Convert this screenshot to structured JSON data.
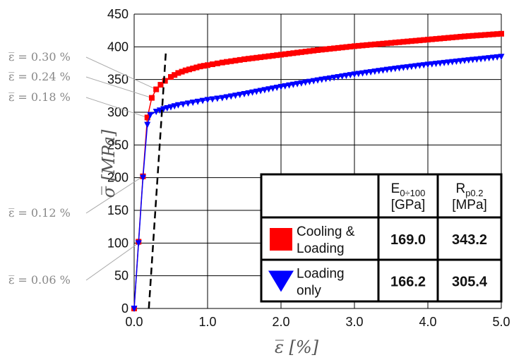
{
  "chart_data": {
    "type": "line",
    "xlabel": "ε̅ [%]",
    "ylabel": "σ̅ [MPa]",
    "xlim": [
      0,
      5
    ],
    "ylim": [
      0,
      450
    ],
    "x_ticks": [
      "0.0",
      "1.0",
      "2.0",
      "3.0",
      "4.0",
      "5.0"
    ],
    "y_ticks": [
      "0",
      "50",
      "100",
      "150",
      "200",
      "250",
      "300",
      "350",
      "400",
      "450"
    ],
    "grid": true,
    "series": [
      {
        "name": "Cooling & Loading",
        "color": "#ff0000",
        "marker": "square",
        "x": [
          0,
          0.06,
          0.12,
          0.18,
          0.24,
          0.3,
          0.36,
          0.42,
          0.5,
          0.6,
          0.7,
          0.8,
          0.9,
          1.0,
          1.2,
          1.5,
          2.0,
          2.5,
          3.0,
          3.5,
          4.0,
          4.5,
          5.0
        ],
        "y": [
          0,
          102,
          202,
          292,
          322,
          335,
          342,
          348,
          354,
          360,
          364,
          367,
          370,
          372,
          376,
          381,
          388,
          395,
          401,
          406,
          411,
          416,
          420
        ]
      },
      {
        "name": "Loading only",
        "color": "#0000ff",
        "marker": "triangle-down",
        "x": [
          0,
          0.06,
          0.12,
          0.18,
          0.22,
          0.3,
          0.4,
          0.5,
          0.6,
          0.8,
          1.0,
          1.2,
          1.5,
          2.0,
          2.5,
          3.0,
          3.5,
          4.0,
          4.5,
          5.0
        ],
        "y": [
          0,
          100,
          200,
          281,
          296,
          301,
          305,
          308,
          311,
          315,
          319,
          322,
          328,
          339,
          349,
          358,
          366,
          373,
          379,
          385
        ]
      }
    ],
    "offset_line": {
      "style": "dashed",
      "color": "#000000",
      "x0": 0.2,
      "slope_mpa_per_pct": 1690
    },
    "annotations": [
      {
        "text": "ε̅ = 0.30 %",
        "x": 0.3,
        "y": 335
      },
      {
        "text": "ε̅ = 0.24 %",
        "x": 0.24,
        "y": 322
      },
      {
        "text": "ε̅ = 0.18 %",
        "x": 0.18,
        "y": 292
      },
      {
        "text": "ε̅ = 0.12 %",
        "x": 0.12,
        "y": 202
      },
      {
        "text": "ε̅ = 0.06 %",
        "x": 0.06,
        "y": 100
      }
    ],
    "table": {
      "col1_header": "E",
      "col1_header_sub": "0÷100",
      "col1_unit": "[GPa]",
      "col2_header": "R",
      "col2_header_sub": "p0.2",
      "col2_unit": "[MPa]",
      "rows": [
        {
          "label_line1": "Cooling &",
          "label_line2": "Loading",
          "marker": "square",
          "color": "#ff0000",
          "e": "169.0",
          "r": "343.2"
        },
        {
          "label_line1": "Loading",
          "label_line2": "only",
          "marker": "triangle-down",
          "color": "#0000ff",
          "e": "166.2",
          "r": "305.4"
        }
      ]
    }
  }
}
